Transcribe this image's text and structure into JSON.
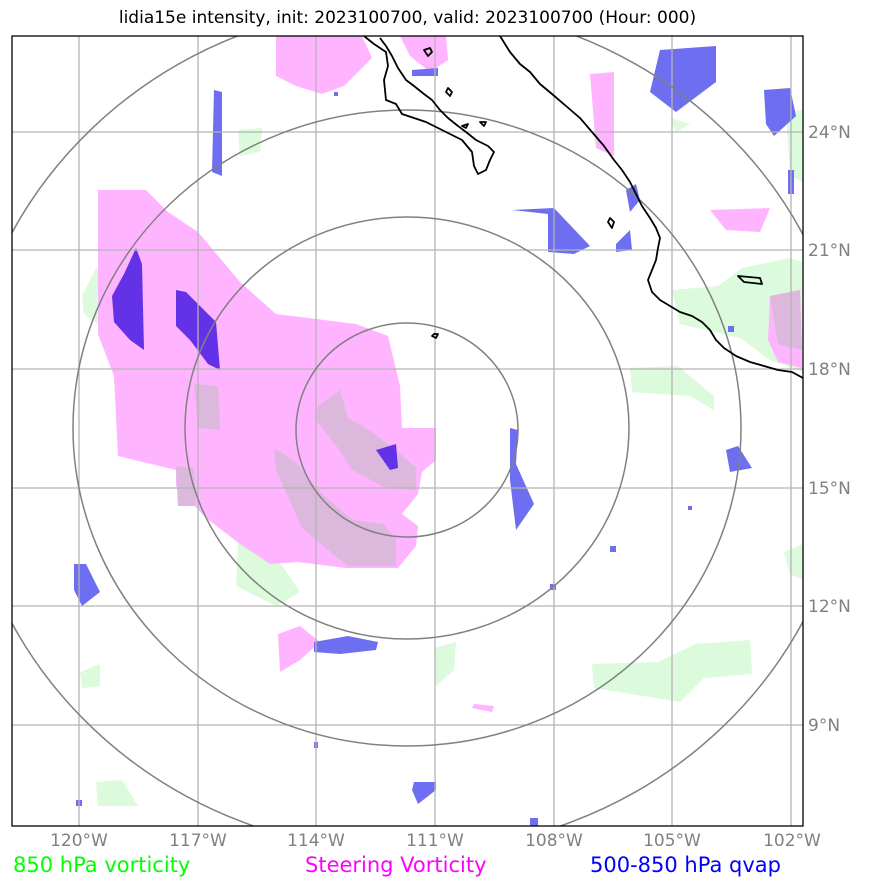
{
  "title": "lidia15e intensity, init: 2023100700, valid: 2023100700 (Hour: 000)",
  "map": {
    "lon_ticks": [
      "120°W",
      "117°W",
      "114°W",
      "111°W",
      "108°W",
      "105°W",
      "102°W"
    ],
    "lat_ticks": [
      "24°N",
      "21°N",
      "18°N",
      "15°N",
      "12°N",
      "9°N"
    ]
  },
  "legend": {
    "vorticity_850": {
      "label": "850 hPa vorticity",
      "color": "#00ff00"
    },
    "steering_vorticity": {
      "label": "Steering Vorticity",
      "color": "#ff00ff"
    },
    "qvap_500_850": {
      "label": "500-850 hPa qvap",
      "color": "#0000ff"
    }
  },
  "colors": {
    "green_fill": "#dcfadc",
    "pink_fill": "#ffb4ff",
    "blue_fill": "#6e6ef0",
    "overlap_fill": "#dcb8dc",
    "purple_fill": "#6432e6",
    "rings": "#808080",
    "grid": "#b4b4b4",
    "coast": "#000000"
  }
}
